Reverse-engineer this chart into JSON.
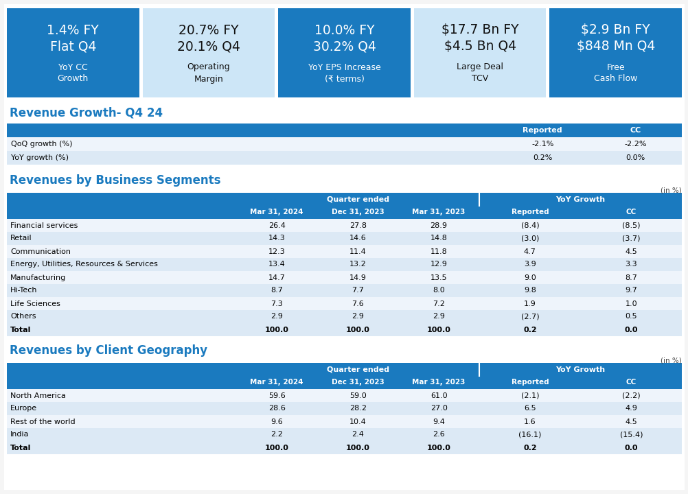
{
  "kpi_boxes": [
    {
      "line1": "1.4% FY",
      "line2": "Flat Q4",
      "line3": "YoY CC",
      "line4": "Growth",
      "bg": "#1a7abf",
      "text_color": "#ffffff"
    },
    {
      "line1": "20.7% FY",
      "line2": "20.1% Q4",
      "line3": "Operating",
      "line4": "Margin",
      "bg": "#cde6f7",
      "text_color": "#111111"
    },
    {
      "line1": "10.0% FY",
      "line2": "30.2% Q4",
      "line3": "YoY EPS Increase",
      "line4": "(₹ terms)",
      "bg": "#1a7abf",
      "text_color": "#ffffff"
    },
    {
      "line1": "$17.7 Bn FY",
      "line2": "$4.5 Bn Q4",
      "line3": "Large Deal",
      "line4": "TCV",
      "bg": "#cde6f7",
      "text_color": "#111111"
    },
    {
      "line1": "$2.9 Bn FY",
      "line2": "$848 Mn Q4",
      "line3": "Free",
      "line4": "Cash Flow",
      "bg": "#1a7abf",
      "text_color": "#ffffff"
    }
  ],
  "revenue_growth_title": "Revenue Growth- Q4 24",
  "revenue_growth_rows": [
    [
      "QoQ growth (%)",
      "-2.1%",
      "-2.2%"
    ],
    [
      "YoY growth (%)",
      "0.2%",
      "0.0%"
    ]
  ],
  "segments_title": "Revenues by Business Segments",
  "segments_note": "(in %)",
  "segments_rows": [
    [
      "Financial services",
      "26.4",
      "27.8",
      "28.9",
      "(8.4)",
      "(8.5)"
    ],
    [
      "Retail",
      "14.3",
      "14.6",
      "14.8",
      "(3.0)",
      "(3.7)"
    ],
    [
      "Communication",
      "12.3",
      "11.4",
      "11.8",
      "4.7",
      "4.5"
    ],
    [
      "Energy, Utilities, Resources & Services",
      "13.4",
      "13.2",
      "12.9",
      "3.9",
      "3.3"
    ],
    [
      "Manufacturing",
      "14.7",
      "14.9",
      "13.5",
      "9.0",
      "8.7"
    ],
    [
      "Hi-Tech",
      "8.7",
      "7.7",
      "8.0",
      "9.8",
      "9.7"
    ],
    [
      "Life Sciences",
      "7.3",
      "7.6",
      "7.2",
      "1.9",
      "1.0"
    ],
    [
      "Others",
      "2.9",
      "2.9",
      "2.9",
      "(2.7)",
      "0.5"
    ],
    [
      "Total",
      "100.0",
      "100.0",
      "100.0",
      "0.2",
      "0.0"
    ]
  ],
  "geography_title": "Revenues by Client Geography",
  "geography_note": "(in %)",
  "geography_rows": [
    [
      "North America",
      "59.6",
      "59.0",
      "61.0",
      "(2.1)",
      "(2.2)"
    ],
    [
      "Europe",
      "28.6",
      "28.2",
      "27.0",
      "6.5",
      "4.9"
    ],
    [
      "Rest of the world",
      "9.6",
      "10.4",
      "9.4",
      "1.6",
      "4.5"
    ],
    [
      "India",
      "2.2",
      "2.4",
      "2.6",
      "(16.1)",
      "(15.4)"
    ],
    [
      "Total",
      "100.0",
      "100.0",
      "100.0",
      "0.2",
      "0.0"
    ]
  ],
  "col_headers": [
    "Mar 31, 2024",
    "Dec 31, 2023",
    "Mar 31, 2023",
    "Reported",
    "CC"
  ],
  "header_blue": "#1a7abf",
  "header_text": "#ffffff",
  "row_alt1": "#dce9f5",
  "row_alt2": "#eef4fb",
  "title_color": "#1a7abf",
  "total_row_bg": "#dce9f5",
  "bg_color": "#f5f5f5"
}
